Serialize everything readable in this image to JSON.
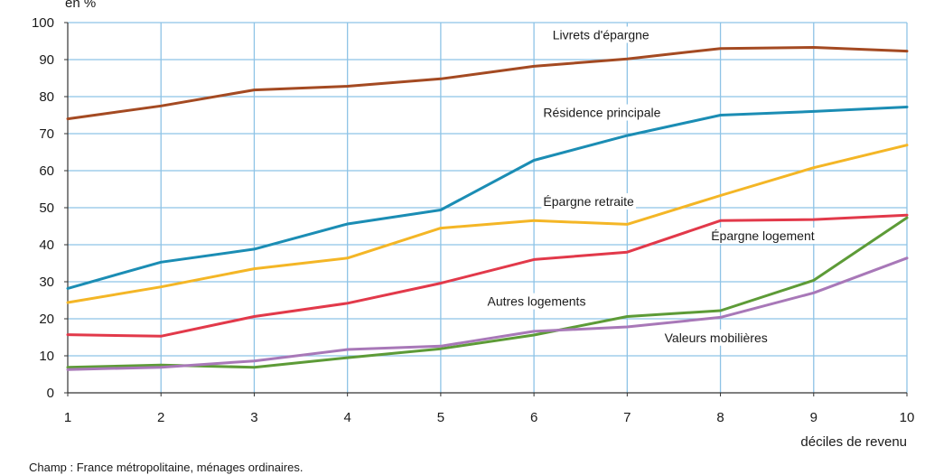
{
  "chart_data": {
    "type": "line",
    "title": "",
    "ylabel": "en %",
    "xlabel": "déciles de revenu",
    "x": [
      1,
      2,
      3,
      4,
      5,
      6,
      7,
      8,
      9,
      10
    ],
    "xlim": [
      1,
      10
    ],
    "ylim": [
      0,
      100
    ],
    "yticks": [
      0,
      10,
      20,
      30,
      40,
      50,
      60,
      70,
      80,
      90,
      100
    ],
    "grid": true,
    "colors": {
      "grid": "#8ec3e6",
      "axis": "#333333"
    },
    "series": [
      {
        "name": "Livrets d'épargne",
        "color": "#a44a22",
        "values": [
          74,
          77.5,
          81.8,
          82.8,
          84.8,
          88.2,
          90.2,
          93,
          93.3,
          92.3
        ],
        "label_anchor": [
          6.2,
          95.5
        ]
      },
      {
        "name": "Résidence principale",
        "color": "#1b8db4",
        "values": [
          28.2,
          35.3,
          38.8,
          45.6,
          49.4,
          62.8,
          69.5,
          75,
          76,
          77.2
        ],
        "label_anchor": [
          6.1,
          74.5
        ]
      },
      {
        "name": "Épargne retraite",
        "color": "#f4b626",
        "values": [
          24.4,
          28.6,
          33.5,
          36.4,
          44.5,
          46.5,
          45.5,
          53.3,
          60.8,
          66.9
        ],
        "label_anchor": [
          6.1,
          50.5
        ]
      },
      {
        "name": "Épargne logement",
        "color": "#e2394a",
        "values": [
          15.7,
          15.3,
          20.6,
          24.2,
          29.6,
          36,
          38,
          46.5,
          46.8,
          48
        ],
        "label_anchor": [
          7.9,
          41.2
        ]
      },
      {
        "name": "Autres logements",
        "color": "#5d9b37",
        "values": [
          6.9,
          7.5,
          6.9,
          9.5,
          11.9,
          15.6,
          20.6,
          22.2,
          30.4,
          47.3
        ],
        "label_anchor": [
          5.5,
          23.5
        ]
      },
      {
        "name": "Valeurs mobilières",
        "color": "#a878b8",
        "values": [
          6.3,
          6.9,
          8.6,
          11.7,
          12.6,
          16.6,
          17.8,
          20.4,
          27,
          36.4
        ],
        "label_anchor": [
          7.4,
          13.7
        ]
      }
    ]
  },
  "footnote": "Champ : France métropolitaine, ménages ordinaires."
}
